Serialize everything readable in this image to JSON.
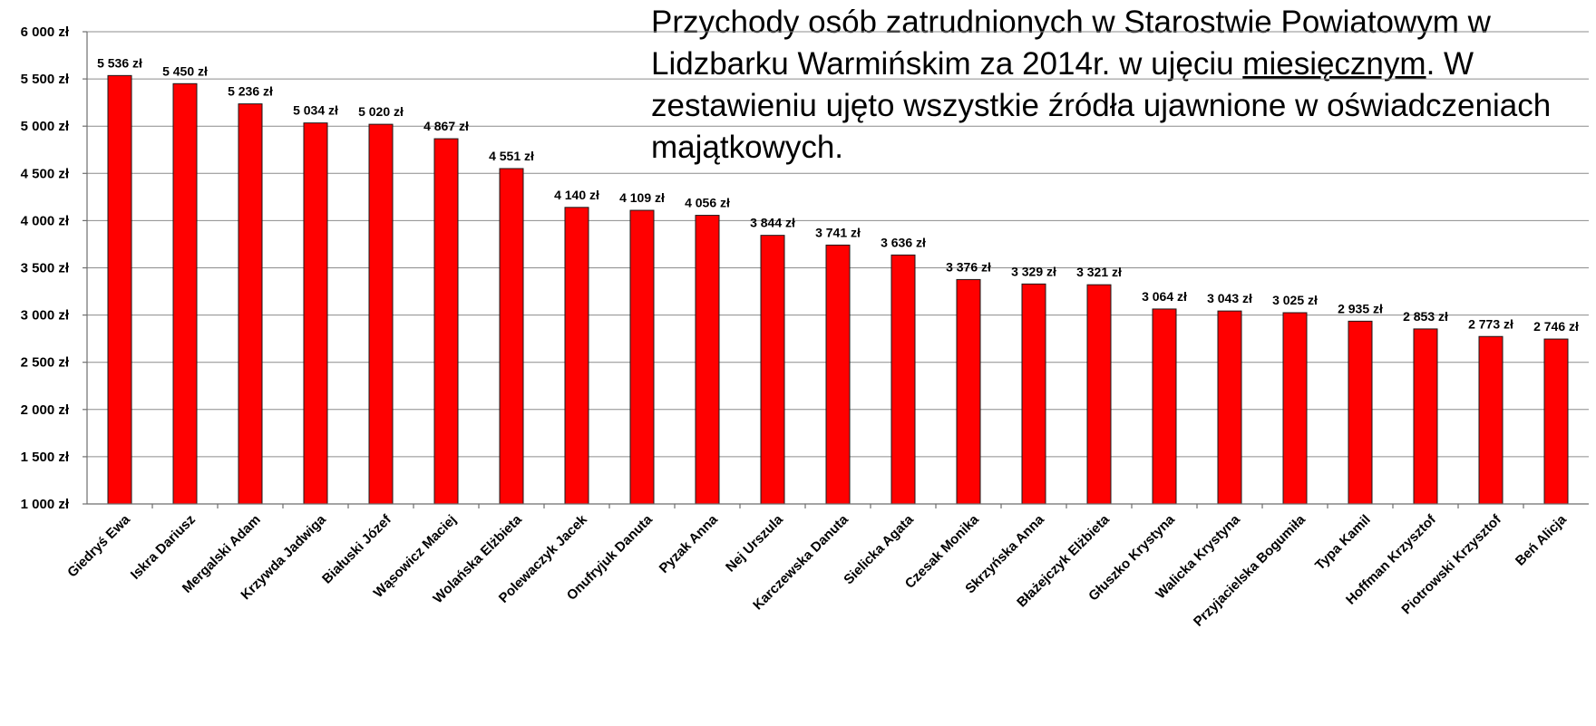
{
  "chart_data": {
    "type": "bar",
    "title_parts": {
      "before": "Przychody osób zatrudnionych w Starostwie Powiatowym w Lidzbarku Warmińskim za 2014r. w ujęciu ",
      "underlined": "miesięcznym",
      "after": ". W zestawieniu ujęto wszystkie źródła ujawnione w oświadczeniach majątkowych."
    },
    "categories": [
      "Giedryś Ewa",
      "Iskra Dariusz",
      "Mergalski Adam",
      "Krzywda Jadwiga",
      "Białuski Józef",
      "Wąsowicz Maciej",
      "Wolańska Elżbieta",
      "Polewaczyk Jacek",
      "Onufryjuk Danuta",
      "Pyzak Anna",
      "Nej Urszula",
      "Karczewska Danuta",
      "Sielicka Agata",
      "Czesak Monika",
      "Skrzyńska Anna",
      "Błażejczyk Elżbieta",
      "Głuszko Krystyna",
      "Walicka Krystyna",
      "Przyjacielska Bogumiła",
      "Typa Kamil",
      "Hoffman Krzysztof",
      "Piotrowski Krzysztof",
      "Beń Alicja"
    ],
    "values": [
      5536,
      5450,
      5236,
      5034,
      5020,
      4867,
      4551,
      4140,
      4109,
      4056,
      3844,
      3741,
      3636,
      3376,
      3329,
      3321,
      3064,
      3043,
      3025,
      2935,
      2853,
      2773,
      2746
    ],
    "value_labels": [
      "5 536 zł",
      "5 450 zł",
      "5 236 zł",
      "5 034 zł",
      "5 020 zł",
      "4 867 zł",
      "4 551 zł",
      "4 140 zł",
      "4 109 zł",
      "4 056 zł",
      "3 844 zł",
      "3 741 zł",
      "3 636 zł",
      "3 376 zł",
      "3 329 zł",
      "3 321 zł",
      "3 064 zł",
      "3 043 zł",
      "3 025 zł",
      "2 935 zł",
      "2 853 zł",
      "2 773 zł",
      "2 746 zł"
    ],
    "yticks": [
      1000,
      1500,
      2000,
      2500,
      3000,
      3500,
      4000,
      4500,
      5000,
      5500,
      6000
    ],
    "ytick_labels": [
      "1 000 zł",
      "1 500 zł",
      "2 000 zł",
      "2 500 zł",
      "3 000 zł",
      "3 500 zł",
      "4 000 zł",
      "4 500 zł",
      "5 000 zł",
      "5 500 zł",
      "6 000 zł"
    ],
    "ylim": [
      1000,
      6000
    ],
    "grid": true,
    "colors": {
      "bar": "#ff0000",
      "bar_outline": "#1a1a1a"
    }
  }
}
